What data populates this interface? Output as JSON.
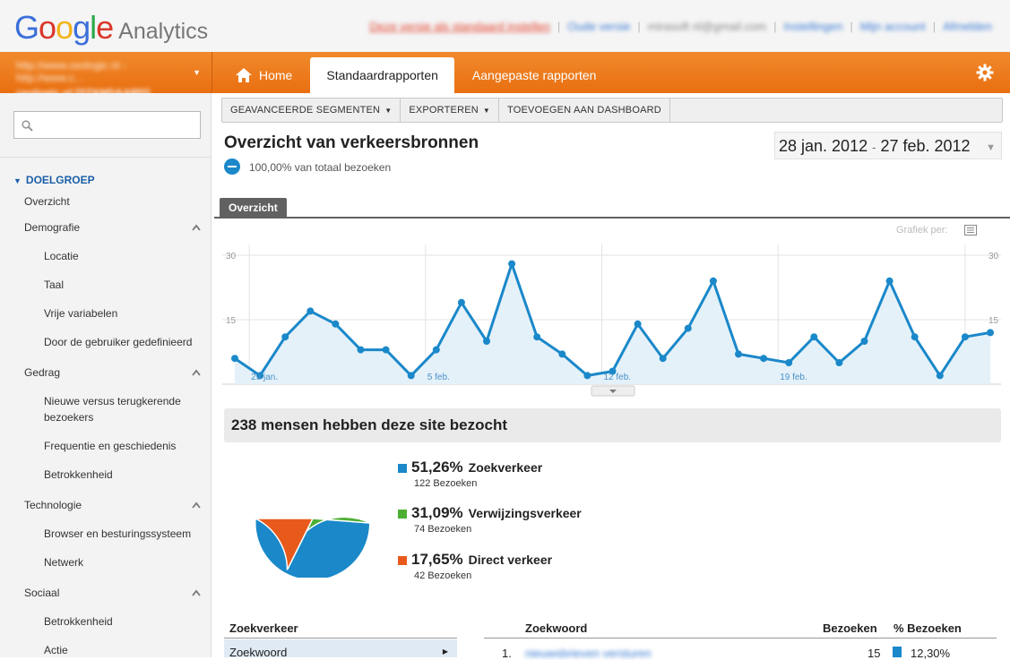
{
  "header": {
    "logo_google": [
      "G",
      "o",
      "o",
      "g",
      "l",
      "e"
    ],
    "logo_analytics": "Analytics",
    "links": {
      "set_default": "Deze versie als standaard instellen",
      "old_version": "Oude versie",
      "email": "mirasoft nl@gmail.com",
      "settings": "Instellingen",
      "my_account": "Mijn account",
      "sign_out": "Afmelden",
      "sep": "|"
    }
  },
  "account": {
    "line1": "http://www.ceologic.nl - http://www.c...",
    "line2": "ceologic.nl [STANDAARD]"
  },
  "nav": {
    "home": "Home",
    "standard_reports": "Standaardrapporten",
    "custom_reports": "Aangepaste rapporten"
  },
  "sidebar": {
    "search_placeholder": "",
    "section": "DOELGROEP",
    "items": [
      {
        "label": "Overzicht"
      },
      {
        "label": "Demografie"
      },
      {
        "label": "Locatie"
      },
      {
        "label": "Taal"
      },
      {
        "label": "Vrije variabelen"
      },
      {
        "label": "Door de gebruiker gedefinieerd"
      },
      {
        "label": "Gedrag"
      },
      {
        "label": "Nieuwe versus terugkerende bezoekers"
      },
      {
        "label": "Frequentie en geschiedenis"
      },
      {
        "label": "Betrokkenheid"
      },
      {
        "label": "Technologie"
      },
      {
        "label": "Browser en besturingssysteem"
      },
      {
        "label": "Netwerk"
      },
      {
        "label": "Sociaal"
      },
      {
        "label": "Betrokkenheid"
      },
      {
        "label": "Actie"
      }
    ]
  },
  "toolbar": {
    "segments": "GEAVANCEERDE SEGMENTEN",
    "export": "EXPORTEREN",
    "add_dashboard": "TOEVOEGEN AAN DASHBOARD"
  },
  "report": {
    "title": "Overzicht van verkeersbronnen",
    "segment_text": "100,00% van totaal bezoeken",
    "date_start": "28 jan. 2012",
    "date_sep": "-",
    "date_end": "27 feb. 2012",
    "tab": "Overzicht",
    "chart_by": "Grafiek per:"
  },
  "chart_data": {
    "type": "area",
    "y_ticks": [
      "30",
      "15"
    ],
    "ylim": [
      0,
      30
    ],
    "x_labels": [
      {
        "label": "29 jan.",
        "index": 1
      },
      {
        "label": "5 feb.",
        "index": 8
      },
      {
        "label": "12 feb.",
        "index": 15
      },
      {
        "label": "19 feb.",
        "index": 22
      }
    ],
    "values": [
      6,
      2,
      11,
      17,
      14,
      8,
      8,
      2,
      8,
      19,
      10,
      28,
      11,
      7,
      2,
      3,
      14,
      6,
      13,
      24,
      7,
      6,
      5,
      11,
      5,
      10,
      24,
      11,
      2,
      11,
      12
    ],
    "color": "#1a88c9",
    "fill": "#e4f1f9"
  },
  "summary": {
    "title": "238 mensen hebben deze site bezocht"
  },
  "pie_data": {
    "type": "pie",
    "slices": [
      {
        "name": "Zoekverkeer",
        "pct": 51.26,
        "label": "51,26%",
        "visits": "122 Bezoeken",
        "color": "#1a88c9"
      },
      {
        "name": "Verwijzingsverkeer",
        "pct": 31.09,
        "label": "31,09%",
        "visits": "74 Bezoeken",
        "color": "#4caf34"
      },
      {
        "name": "Direct verkeer",
        "pct": 17.65,
        "label": "17,65%",
        "visits": "42 Bezoeken",
        "color": "#e85a1c"
      }
    ]
  },
  "table": {
    "left_header": "Zoekverkeer",
    "left_row": "Zoekwoord",
    "col_keyword": "Zoekwoord",
    "col_visits": "Bezoeken",
    "col_pct": "% Bezoeken",
    "row1_rank": "1.",
    "row1_keyword": "nieuwsbrieven versturen",
    "row1_visits": "15",
    "row1_pct": "12,30%"
  }
}
